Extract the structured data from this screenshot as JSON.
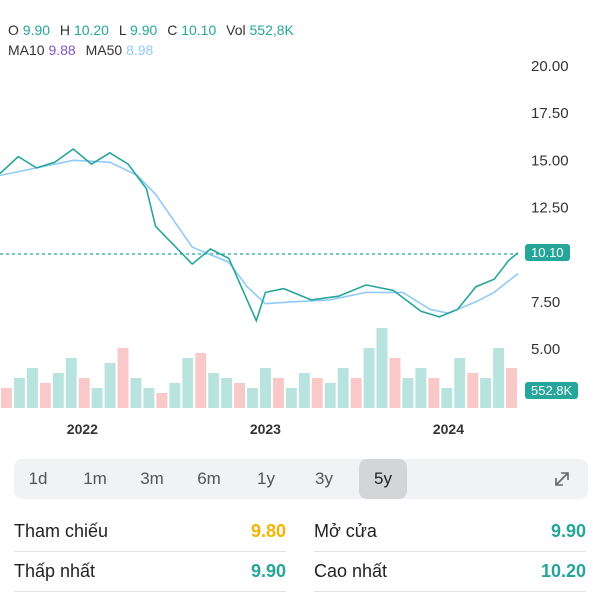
{
  "header": {
    "ohlc": [
      {
        "label": "O",
        "value": "9.90"
      },
      {
        "label": "H",
        "value": "10.20"
      },
      {
        "label": "L",
        "value": "9.90"
      },
      {
        "label": "C",
        "value": "10.10"
      },
      {
        "label": "Vol",
        "value": "552,8K"
      }
    ],
    "ma10_label": "MA10",
    "ma10_value": "9.88",
    "ma50_label": "MA50",
    "ma50_value": "8.98"
  },
  "price_badge": "10.10",
  "volume_badge": "552.8K",
  "ranges": [
    "1d",
    "1m",
    "3m",
    "6m",
    "1y",
    "3y",
    "5y"
  ],
  "active_range": "5y",
  "stats": {
    "ref_label": "Tham chiếu",
    "ref_value": "9.80",
    "open_label": "Mở cửa",
    "open_value": "9.90",
    "low_label": "Thấp nhất",
    "low_value": "9.90",
    "high_label": "Cao nhất",
    "high_value": "10.20"
  },
  "colors": {
    "up": "#26a69a",
    "down": "#ef5350",
    "ma50": "#90caf9",
    "ma10": "#7e57c2",
    "reference": "#f5b400"
  },
  "chart_data": {
    "type": "line",
    "x_ticks": [
      "2022",
      "2023",
      "2024"
    ],
    "y_ticks": [
      "20.00",
      "17.50",
      "15.00",
      "12.50",
      "10.10",
      "7.50",
      "5.00"
    ],
    "ylim": [
      4.5,
      21
    ],
    "last_close": 10.1,
    "price_path": [
      [
        2021.6,
        14.3
      ],
      [
        2021.7,
        15.2
      ],
      [
        2021.8,
        14.6
      ],
      [
        2021.9,
        14.9
      ],
      [
        2022.0,
        15.6
      ],
      [
        2022.1,
        14.8
      ],
      [
        2022.2,
        15.4
      ],
      [
        2022.3,
        14.8
      ],
      [
        2022.4,
        13.5
      ],
      [
        2022.45,
        11.5
      ],
      [
        2022.55,
        10.5
      ],
      [
        2022.65,
        9.5
      ],
      [
        2022.75,
        10.3
      ],
      [
        2022.85,
        9.8
      ],
      [
        2022.95,
        7.6
      ],
      [
        2023.0,
        6.5
      ],
      [
        2023.05,
        8.0
      ],
      [
        2023.15,
        8.2
      ],
      [
        2023.3,
        7.6
      ],
      [
        2023.45,
        7.8
      ],
      [
        2023.6,
        8.4
      ],
      [
        2023.75,
        8.1
      ],
      [
        2023.9,
        7.0
      ],
      [
        2024.0,
        6.7
      ],
      [
        2024.1,
        7.1
      ],
      [
        2024.2,
        8.3
      ],
      [
        2024.3,
        8.7
      ],
      [
        2024.38,
        9.7
      ],
      [
        2024.43,
        10.1
      ]
    ],
    "ma50_path": [
      [
        2021.6,
        14.2
      ],
      [
        2021.8,
        14.6
      ],
      [
        2022.0,
        15.0
      ],
      [
        2022.2,
        14.9
      ],
      [
        2022.35,
        14.2
      ],
      [
        2022.45,
        13.2
      ],
      [
        2022.55,
        11.8
      ],
      [
        2022.65,
        10.4
      ],
      [
        2022.75,
        10.0
      ],
      [
        2022.85,
        9.6
      ],
      [
        2022.95,
        8.3
      ],
      [
        2023.05,
        7.4
      ],
      [
        2023.2,
        7.5
      ],
      [
        2023.4,
        7.6
      ],
      [
        2023.6,
        8.0
      ],
      [
        2023.8,
        8.0
      ],
      [
        2023.95,
        7.1
      ],
      [
        2024.05,
        6.9
      ],
      [
        2024.2,
        7.5
      ],
      [
        2024.3,
        8.0
      ],
      [
        2024.43,
        9.0
      ]
    ],
    "volume": [
      0.2,
      0.3,
      0.4,
      0.25,
      0.35,
      0.5,
      0.3,
      0.2,
      0.45,
      0.6,
      0.3,
      0.2,
      0.15,
      0.25,
      0.5,
      0.55,
      0.35,
      0.3,
      0.25,
      0.2,
      0.4,
      0.3,
      0.2,
      0.35,
      0.3,
      0.25,
      0.4,
      0.3,
      0.6,
      0.8,
      0.5,
      0.3,
      0.4,
      0.3,
      0.2,
      0.5,
      0.35,
      0.3,
      0.6,
      0.4
    ]
  }
}
